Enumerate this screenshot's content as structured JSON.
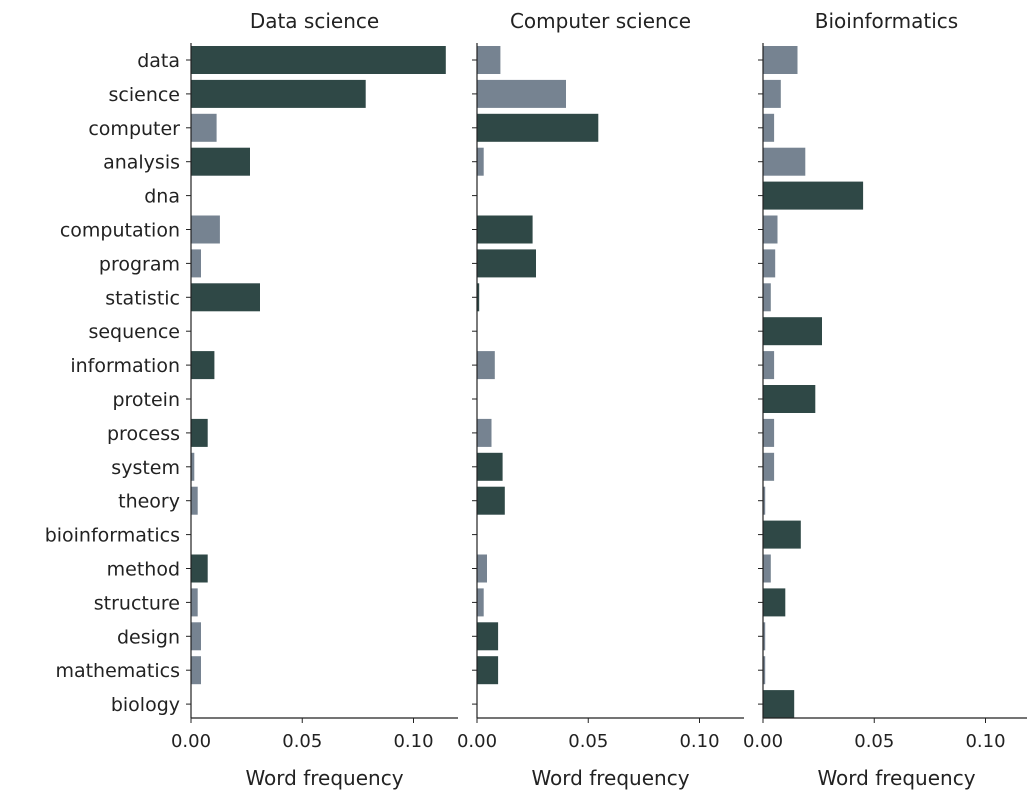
{
  "colors": {
    "highlight": "#2f4846",
    "normal": "#768391",
    "axis": "#222222"
  },
  "chart_data": {
    "type": "bar",
    "orientation": "horizontal",
    "categories": [
      "data",
      "science",
      "computer",
      "analysis",
      "dna",
      "computation",
      "program",
      "statistic",
      "sequence",
      "information",
      "protein",
      "process",
      "system",
      "theory",
      "bioinformatics",
      "method",
      "structure",
      "design",
      "mathematics",
      "biology"
    ],
    "xlim": [
      0,
      0.12
    ],
    "xticks": [
      "0.00",
      "0.05",
      "0.10"
    ],
    "xtick_values": [
      0,
      0.05,
      0.1
    ],
    "grid": false,
    "panels": [
      {
        "title": "Data science",
        "xlabel": "Word frequency",
        "values": [
          0.1145,
          0.0785,
          0.0115,
          0.0265,
          0,
          0.013,
          0.0045,
          0.031,
          0,
          0.0105,
          0,
          0.0075,
          0.0015,
          0.003,
          0,
          0.0075,
          0.003,
          0.0045,
          0.0045,
          0
        ],
        "highlight": [
          true,
          true,
          false,
          true,
          false,
          false,
          false,
          true,
          false,
          true,
          false,
          true,
          false,
          false,
          false,
          true,
          false,
          false,
          false,
          false
        ]
      },
      {
        "title": "Computer science",
        "xlabel": "Word frequency",
        "values": [
          0.0105,
          0.04,
          0.0545,
          0.003,
          0,
          0.025,
          0.0265,
          0.001,
          0,
          0.008,
          0,
          0.0065,
          0.0115,
          0.0125,
          0,
          0.0045,
          0.003,
          0.0095,
          0.0095,
          0
        ],
        "highlight": [
          false,
          false,
          true,
          false,
          false,
          true,
          true,
          true,
          false,
          false,
          false,
          false,
          true,
          true,
          false,
          false,
          false,
          true,
          true,
          false
        ]
      },
      {
        "title": "Bioinformatics",
        "xlabel": "Word frequency",
        "values": [
          0.0155,
          0.008,
          0.005,
          0.019,
          0.045,
          0.0065,
          0.0055,
          0.0035,
          0.0265,
          0.005,
          0.0235,
          0.005,
          0.005,
          0.001,
          0.017,
          0.0035,
          0.01,
          0.001,
          0.001,
          0.014
        ],
        "highlight": [
          false,
          false,
          false,
          false,
          true,
          false,
          false,
          false,
          true,
          false,
          true,
          false,
          false,
          false,
          true,
          false,
          true,
          false,
          false,
          true
        ]
      }
    ]
  }
}
